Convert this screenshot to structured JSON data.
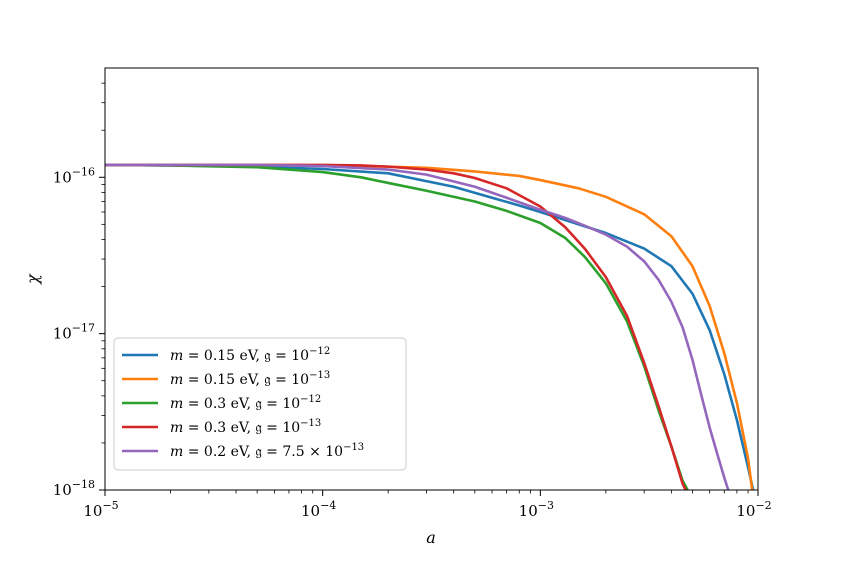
{
  "chart_data": {
    "type": "line",
    "title": "",
    "xlabel": "a",
    "ylabel": "χ",
    "xscale": "log",
    "yscale": "log",
    "xlim": [
      1e-05,
      0.01
    ],
    "ylim": [
      1e-18,
      5e-16
    ],
    "grid": false,
    "legend_position": "lower-left",
    "x_ticks": [
      {
        "value": 1e-05,
        "base": "10",
        "exp": "−5"
      },
      {
        "value": 0.0001,
        "base": "10",
        "exp": "−4"
      },
      {
        "value": 0.001,
        "base": "10",
        "exp": "−3"
      },
      {
        "value": 0.01,
        "base": "10",
        "exp": "−2"
      }
    ],
    "y_ticks": [
      {
        "value": 1e-18,
        "base": "10",
        "exp": "−18"
      },
      {
        "value": 1e-17,
        "base": "10",
        "exp": "−17"
      },
      {
        "value": 1e-16,
        "base": "10",
        "exp": "−16"
      }
    ],
    "series": [
      {
        "name": "m = 0.15 eV, 𝔤 = 10^−12",
        "legend": {
          "var": "m",
          "mass": " = 0.15 eV, ",
          "coup": "𝔤",
          "eq": " = 10",
          "sup": "−12"
        },
        "color": "#1f77b4",
        "x": [
          1e-05,
          2e-05,
          5e-05,
          0.0001,
          0.0002,
          0.0004,
          0.0006,
          0.0008,
          0.001,
          0.0015,
          0.002,
          0.003,
          0.004,
          0.005,
          0.006,
          0.007,
          0.008,
          0.009,
          0.0095
        ],
        "y": [
          1.2e-16,
          1.19e-16,
          1.17e-16,
          1.13e-16,
          1.06e-16,
          8.7e-17,
          7.4e-17,
          6.6e-17,
          6e-17,
          5e-17,
          4.4e-17,
          3.5e-17,
          2.7e-17,
          1.8e-17,
          1.05e-17,
          5.5e-18,
          2.8e-18,
          1.4e-18,
          1e-18
        ]
      },
      {
        "name": "m = 0.15 eV, 𝔤 = 10^−13",
        "legend": {
          "var": "m",
          "mass": " = 0.15 eV, ",
          "coup": "𝔤",
          "eq": " = 10",
          "sup": "−13"
        },
        "color": "#ff7f0e",
        "x": [
          1e-05,
          5e-05,
          0.0001,
          0.0002,
          0.0003,
          0.0005,
          0.0008,
          0.001,
          0.0015,
          0.002,
          0.003,
          0.004,
          0.005,
          0.006,
          0.007,
          0.008,
          0.009,
          0.0094
        ],
        "y": [
          1.2e-16,
          1.2e-16,
          1.19e-16,
          1.17e-16,
          1.15e-16,
          1.09e-16,
          1.02e-16,
          9.6e-17,
          8.5e-17,
          7.5e-17,
          5.8e-17,
          4.2e-17,
          2.7e-17,
          1.5e-17,
          7.5e-18,
          3.6e-18,
          1.6e-18,
          1e-18
        ]
      },
      {
        "name": "m = 0.3 eV, 𝔤 = 10^−12",
        "legend": {
          "var": "m",
          "mass": " = 0.3 eV, ",
          "coup": "𝔤",
          "eq": " = 10",
          "sup": "−12"
        },
        "color": "#2ca02c",
        "x": [
          1e-05,
          2e-05,
          5e-05,
          0.0001,
          0.00015,
          0.0002,
          0.0003,
          0.0005,
          0.0007,
          0.001,
          0.0013,
          0.0016,
          0.002,
          0.0025,
          0.003,
          0.0035,
          0.004,
          0.0045,
          0.00475
        ],
        "y": [
          1.2e-16,
          1.19e-16,
          1.16e-16,
          1.08e-16,
          1e-16,
          9.2e-17,
          8.2e-17,
          7e-17,
          6.1e-17,
          5.1e-17,
          4.1e-17,
          3.1e-17,
          2.1e-17,
          1.2e-17,
          6.2e-18,
          3.2e-18,
          1.9e-18,
          1.15e-18,
          1e-18
        ]
      },
      {
        "name": "m = 0.3 eV, 𝔤 = 10^−13",
        "legend": {
          "var": "m",
          "mass": " = 0.3 eV, ",
          "coup": "𝔤",
          "eq": " = 10",
          "sup": "−13"
        },
        "color": "#d62728",
        "x": [
          1e-05,
          5e-05,
          0.0001,
          0.00015,
          0.0002,
          0.0003,
          0.0004,
          0.0005,
          0.0007,
          0.001,
          0.0013,
          0.0016,
          0.002,
          0.0025,
          0.003,
          0.0035,
          0.004,
          0.0045,
          0.00465
        ],
        "y": [
          1.2e-16,
          1.2e-16,
          1.2e-16,
          1.19e-16,
          1.17e-16,
          1.12e-16,
          1.06e-16,
          9.9e-17,
          8.5e-17,
          6.5e-17,
          4.8e-17,
          3.5e-17,
          2.3e-17,
          1.3e-17,
          6.5e-18,
          3.4e-18,
          1.9e-18,
          1.1e-18,
          1e-18
        ]
      },
      {
        "name": "m = 0.2 eV, 𝔤 = 7.5 × 10^−13",
        "legend": {
          "var": "m",
          "mass": " = 0.2 eV, ",
          "coup": "𝔤",
          "eq": " = 7.5 × 10",
          "sup": "−13"
        },
        "color": "#9467bd",
        "x": [
          1e-05,
          5e-05,
          0.0001,
          0.0002,
          0.0003,
          0.0005,
          0.0007,
          0.001,
          0.0013,
          0.0016,
          0.002,
          0.0025,
          0.003,
          0.0035,
          0.004,
          0.0045,
          0.005,
          0.0055,
          0.006,
          0.0065,
          0.007,
          0.0073
        ],
        "y": [
          1.2e-16,
          1.2e-16,
          1.18e-16,
          1.12e-16,
          1.04e-16,
          8.7e-17,
          7.4e-17,
          6.2e-17,
          5.5e-17,
          4.9e-17,
          4.3e-17,
          3.6e-17,
          2.9e-17,
          2.2e-17,
          1.6e-17,
          1.1e-17,
          6.8e-18,
          4e-18,
          2.5e-18,
          1.7e-18,
          1.2e-18,
          1e-18
        ]
      }
    ]
  }
}
